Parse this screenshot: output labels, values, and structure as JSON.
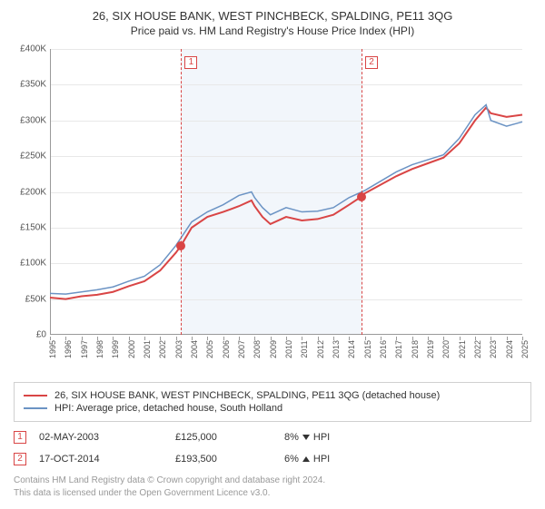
{
  "title": "26, SIX HOUSE BANK, WEST PINCHBECK, SPALDING, PE11 3QG",
  "subtitle": "Price paid vs. HM Land Registry's House Price Index (HPI)",
  "chart": {
    "type": "line",
    "background_color": "#ffffff",
    "shade_band_color": "#e6eef7",
    "grid_color": "#e8e8e8",
    "axis_color": "#999999",
    "y": {
      "min": 0,
      "max": 400000,
      "step": 50000,
      "labels": [
        "£0",
        "£50K",
        "£100K",
        "£150K",
        "£200K",
        "£250K",
        "£300K",
        "£350K",
        "£400K"
      ]
    },
    "x": {
      "start_year": 1995,
      "end_year": 2025,
      "labels": [
        "1995",
        "1996",
        "1997",
        "1998",
        "1999",
        "2000",
        "2001",
        "2002",
        "2003",
        "2004",
        "2005",
        "2006",
        "2007",
        "2008",
        "2009",
        "2010",
        "2011",
        "2012",
        "2013",
        "2014",
        "2015",
        "2016",
        "2017",
        "2018",
        "2019",
        "2020",
        "2021",
        "2022",
        "2023",
        "2024",
        "2025"
      ]
    },
    "shade_bands": [
      {
        "from_year": 2003.33,
        "to_year": 2014.79
      }
    ],
    "vlines": [
      {
        "year": 2003.33,
        "color": "#d94545",
        "label_number": "1"
      },
      {
        "year": 2014.79,
        "color": "#d94545",
        "label_number": "2"
      }
    ],
    "sale_points": [
      {
        "year": 2003.33,
        "value": 125000
      },
      {
        "year": 2014.79,
        "value": 193500
      }
    ],
    "series": [
      {
        "name": "26, SIX HOUSE BANK, WEST PINCHBECK, SPALDING, PE11 3QG (detached house)",
        "color": "#d94545",
        "line_width": 2,
        "data": [
          [
            1995,
            52000
          ],
          [
            1996,
            50000
          ],
          [
            1997,
            54000
          ],
          [
            1998,
            56000
          ],
          [
            1999,
            60000
          ],
          [
            2000,
            68000
          ],
          [
            2001,
            75000
          ],
          [
            2002,
            90000
          ],
          [
            2003,
            115000
          ],
          [
            2003.33,
            125000
          ],
          [
            2004,
            150000
          ],
          [
            2005,
            165000
          ],
          [
            2006,
            172000
          ],
          [
            2007,
            180000
          ],
          [
            2007.8,
            188000
          ],
          [
            2008,
            180000
          ],
          [
            2008.5,
            165000
          ],
          [
            2009,
            155000
          ],
          [
            2010,
            165000
          ],
          [
            2011,
            160000
          ],
          [
            2012,
            162000
          ],
          [
            2013,
            168000
          ],
          [
            2014,
            182000
          ],
          [
            2014.79,
            193500
          ],
          [
            2015,
            198000
          ],
          [
            2016,
            210000
          ],
          [
            2017,
            222000
          ],
          [
            2018,
            232000
          ],
          [
            2019,
            240000
          ],
          [
            2020,
            248000
          ],
          [
            2021,
            268000
          ],
          [
            2022,
            300000
          ],
          [
            2022.7,
            318000
          ],
          [
            2023,
            310000
          ],
          [
            2024,
            305000
          ],
          [
            2025,
            308000
          ]
        ]
      },
      {
        "name": "HPI: Average price, detached house, South Holland",
        "color": "#6b93c4",
        "line_width": 1.5,
        "data": [
          [
            1995,
            58000
          ],
          [
            1996,
            57000
          ],
          [
            1997,
            60000
          ],
          [
            1998,
            63000
          ],
          [
            1999,
            67000
          ],
          [
            2000,
            75000
          ],
          [
            2001,
            82000
          ],
          [
            2002,
            98000
          ],
          [
            2003,
            125000
          ],
          [
            2004,
            158000
          ],
          [
            2005,
            172000
          ],
          [
            2006,
            182000
          ],
          [
            2007,
            195000
          ],
          [
            2007.8,
            200000
          ],
          [
            2008,
            192000
          ],
          [
            2008.5,
            178000
          ],
          [
            2009,
            168000
          ],
          [
            2010,
            178000
          ],
          [
            2011,
            172000
          ],
          [
            2012,
            173000
          ],
          [
            2013,
            178000
          ],
          [
            2014,
            192000
          ],
          [
            2015,
            202000
          ],
          [
            2016,
            215000
          ],
          [
            2017,
            228000
          ],
          [
            2018,
            238000
          ],
          [
            2019,
            245000
          ],
          [
            2020,
            252000
          ],
          [
            2021,
            275000
          ],
          [
            2022,
            308000
          ],
          [
            2022.7,
            322000
          ],
          [
            2023,
            300000
          ],
          [
            2024,
            292000
          ],
          [
            2025,
            298000
          ]
        ]
      }
    ]
  },
  "legend": {
    "items": [
      {
        "label": "26, SIX HOUSE BANK, WEST PINCHBECK, SPALDING, PE11 3QG (detached house)",
        "color": "#d94545"
      },
      {
        "label": "HPI: Average price, detached house, South Holland",
        "color": "#6b93c4"
      }
    ]
  },
  "sales": [
    {
      "marker": "1",
      "date": "02-MAY-2003",
      "price": "£125,000",
      "delta_pct": "8%",
      "delta_dir": "down",
      "delta_suffix": "HPI"
    },
    {
      "marker": "2",
      "date": "17-OCT-2014",
      "price": "£193,500",
      "delta_pct": "6%",
      "delta_dir": "up",
      "delta_suffix": "HPI"
    }
  ],
  "footer_line1": "Contains HM Land Registry data © Crown copyright and database right 2024.",
  "footer_line2": "This data is licensed under the Open Government Licence v3.0."
}
